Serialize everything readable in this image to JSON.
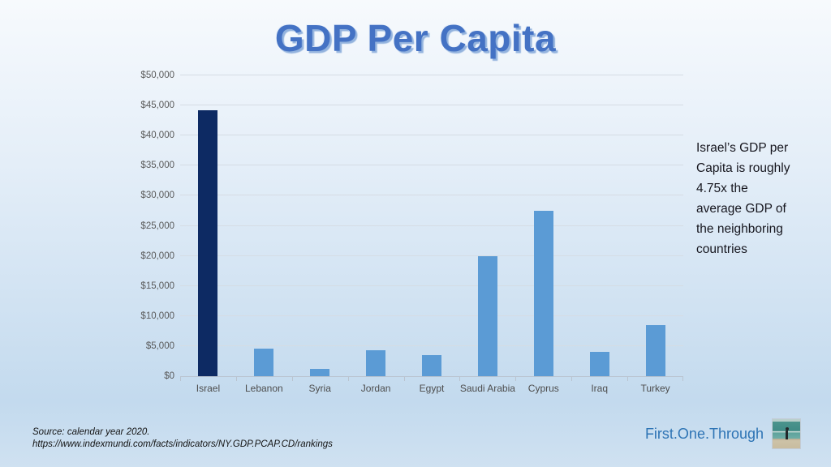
{
  "slide": {
    "title": "GDP Per Capita",
    "annotation_lines": [
      "Israel’s GDP per",
      "Capita is roughly",
      "4.75x the",
      "average GDP of",
      "the neighboring",
      "countries"
    ],
    "source_lines": [
      "Source: calendar year 2020.",
      "https://www.indexmundi.com/facts/indicators/NY.GDP.PCAP.CD/rankings"
    ],
    "brand": "First.One.Through",
    "logo_name": "beach-figure-logo"
  },
  "colors": {
    "highlight_bar": "#0d2a63",
    "default_bar": "#5b9bd5",
    "title_blue": "#4472c4",
    "brand_blue": "#2e74b5",
    "background_top": "#f7fafd",
    "background_bottom": "#c3daee",
    "gridline": "#d5dce4",
    "axis_text": "#595959"
  },
  "chart_data": {
    "type": "bar",
    "title": "GDP Per Capita",
    "categories": [
      "Israel",
      "Lebanon",
      "Syria",
      "Jordan",
      "Egypt",
      "Saudi Arabia",
      "Cyprus",
      "Iraq",
      "Turkey"
    ],
    "values": [
      44200,
      4600,
      1250,
      4300,
      3500,
      20000,
      27500,
      4100,
      8500
    ],
    "highlight_index": 0,
    "xlabel": "",
    "ylabel": "",
    "ylim": [
      0,
      50000
    ],
    "ytick_values": [
      0,
      5000,
      10000,
      15000,
      20000,
      25000,
      30000,
      35000,
      40000,
      45000,
      50000
    ],
    "ytick_labels": [
      "$0",
      "$5,000",
      "$10,000",
      "$15,000",
      "$20,000",
      "$25,000",
      "$30,000",
      "$35,000",
      "$40,000",
      "$45,000",
      "$50,000"
    ],
    "grid": true,
    "legend": "none"
  }
}
